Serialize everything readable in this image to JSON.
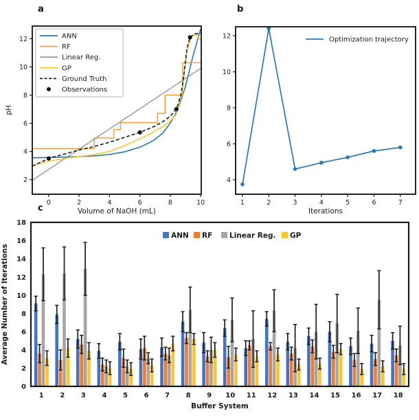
{
  "figure": {
    "panel_labels": {
      "a": "a",
      "b": "b",
      "c": "c"
    }
  },
  "colors": {
    "ann_line": "#2878b5",
    "rf_line": "#f79b3e",
    "linear_line": "#909090",
    "gp_line": "#fbc72d",
    "ground_truth": "#1a1a1a",
    "observations": "#111111",
    "trajectory": "#2878b5",
    "bar_ann": "#4472C4",
    "bar_rf": "#ED7D31",
    "bar_linear": "#A5A5A5",
    "bar_gp": "#FFC32B",
    "error_bar": "#1a1a1a",
    "spine": "#1a1a1a"
  },
  "chart_data": [
    {
      "id": "a",
      "type": "line",
      "title": "",
      "xlabel": "Volume of NaOH (mL)",
      "ylabel": "pH",
      "xlim": [
        -1.08,
        10.04
      ],
      "ylim": [
        0.96,
        12.9
      ],
      "xticks": [
        0,
        2,
        4,
        6,
        8,
        10
      ],
      "yticks": [
        2,
        4,
        6,
        8,
        10,
        12
      ],
      "grid": false,
      "legend_position": "upper-left-box",
      "series": [
        {
          "name": "ANN",
          "style": "solid",
          "color": "#2878b5",
          "width": 1.6,
          "x": [
            -1.08,
            0,
            1,
            2,
            3,
            4,
            5,
            6,
            6.5,
            7,
            7.5,
            8,
            8.5,
            9,
            9.5,
            10
          ],
          "y": [
            3.55,
            3.57,
            3.6,
            3.63,
            3.68,
            3.78,
            3.97,
            4.3,
            4.55,
            4.85,
            5.3,
            6.0,
            7.0,
            8.6,
            10.8,
            12.7
          ]
        },
        {
          "name": "RF",
          "style": "solid",
          "color": "#f79b3e",
          "width": 1.5,
          "x": [
            -1.08,
            3.0,
            3.0,
            4.28,
            4.28,
            4.73,
            4.73,
            7.16,
            7.16,
            7.66,
            7.66,
            8.81,
            8.81,
            10
          ],
          "y": [
            4.2,
            4.2,
            4.95,
            4.95,
            5.55,
            5.55,
            6.05,
            6.05,
            6.7,
            6.7,
            8.0,
            8.0,
            10.3,
            10.3
          ]
        },
        {
          "name": "Linear Reg.",
          "style": "solid",
          "color": "#909090",
          "width": 1.3,
          "x": [
            -1.08,
            10
          ],
          "y": [
            1.95,
            9.9
          ]
        },
        {
          "name": "GP",
          "style": "solid",
          "color": "#fbc72d",
          "width": 1.6,
          "x": [
            -1.08,
            0,
            1,
            2,
            3,
            4,
            5,
            6,
            6.5,
            7,
            7.5,
            8,
            8.4,
            8.8,
            9.1,
            9.4,
            9.7,
            10
          ],
          "y": [
            3.0,
            3.3,
            3.5,
            3.63,
            3.77,
            4.0,
            4.4,
            4.9,
            5.15,
            5.45,
            5.75,
            6.15,
            6.65,
            8.3,
            11.2,
            12.2,
            12.3,
            11.9
          ]
        },
        {
          "name": "Ground Truth",
          "style": "dashed",
          "color": "#1a1a1a",
          "width": 1.6,
          "x": [
            -1.08,
            0,
            1,
            2,
            3,
            4,
            5,
            6,
            7,
            7.5,
            8,
            8.4,
            8.7,
            8.9,
            9.1,
            9.3,
            9.6,
            10
          ],
          "y": [
            2.95,
            3.5,
            3.8,
            4.1,
            4.35,
            4.65,
            5.0,
            5.35,
            5.8,
            6.1,
            6.5,
            7.0,
            8.0,
            9.5,
            11.3,
            12.1,
            12.35,
            12.4
          ]
        },
        {
          "name": "Observations",
          "style": "scatter",
          "color": "#111111",
          "width": 0,
          "x": [
            0,
            6,
            8.4,
            9.3
          ],
          "y": [
            3.5,
            5.35,
            7.0,
            12.1
          ]
        }
      ]
    },
    {
      "id": "b",
      "type": "line",
      "title": "",
      "xlabel": "Iterations",
      "ylabel": "",
      "xlim": [
        0.74,
        7.58
      ],
      "ylim": [
        3.2,
        12.5
      ],
      "xticks": [
        1,
        2,
        3,
        4,
        5,
        6,
        7
      ],
      "yticks": [
        4,
        6,
        8,
        10,
        12
      ],
      "grid": false,
      "legend_position": "upper-right-inline",
      "series": [
        {
          "name": "Optimization trajectory",
          "style": "solid-marker",
          "color": "#2878b5",
          "width": 1.7,
          "x": [
            1,
            2,
            3,
            4,
            5,
            6,
            7
          ],
          "y": [
            3.75,
            12.4,
            4.6,
            4.95,
            5.25,
            5.6,
            5.8
          ]
        }
      ]
    },
    {
      "id": "c",
      "type": "bar",
      "title": "",
      "xlabel": "Buffer System",
      "ylabel": "Average Number of Iterations",
      "categories": [
        "1",
        "2",
        "3",
        "4",
        "5",
        "6",
        "7",
        "8",
        "9",
        "10",
        "11",
        "12",
        "13",
        "14",
        "15",
        "16",
        "17",
        "18"
      ],
      "ylim": [
        0,
        18
      ],
      "yticks": [
        0,
        2,
        4,
        6,
        8,
        10,
        12,
        14,
        16,
        18
      ],
      "grid": false,
      "legend_position": "top-row",
      "series": [
        {
          "name": "ANN",
          "color": "#4472C4",
          "values": [
            9.1,
            7.9,
            5.2,
            3.9,
            4.9,
            4.1,
            4.3,
            7.1,
            4.8,
            6.4,
            4.2,
            7.4,
            4.9,
            5.5,
            6.0,
            4.4,
            4.7,
            5.0
          ],
          "errors": [
            0.8,
            1.0,
            1.0,
            0.8,
            0.9,
            1.1,
            1.0,
            1.1,
            1.1,
            0.9,
            0.8,
            0.8,
            0.9,
            0.9,
            1.1,
            0.9,
            0.9,
            0.9
          ]
        },
        {
          "name": "RF",
          "color": "#ED7D31",
          "values": [
            3.6,
            2.9,
            4.6,
            2.4,
            3.1,
            4.2,
            3.6,
            5.3,
            3.3,
            3.2,
            4.5,
            4.4,
            3.6,
            4.4,
            3.8,
            2.9,
            3.0,
            3.4
          ],
          "errors": [
            1.0,
            1.1,
            1.0,
            0.7,
            1.0,
            1.3,
            0.7,
            0.6,
            0.6,
            1.2,
            0.5,
            0.4,
            0.7,
            0.7,
            0.7,
            0.7,
            0.7,
            0.7
          ]
        },
        {
          "name": "Linear Reg.",
          "color": "#A5A5A5",
          "values": [
            12.3,
            12.4,
            12.9,
            2.2,
            2.2,
            3.1,
            3.4,
            8.4,
            4.0,
            7.3,
            5.2,
            8.3,
            4.2,
            6.0,
            6.9,
            6.1,
            9.5,
            4.5
          ],
          "errors": [
            2.9,
            2.9,
            2.9,
            0.7,
            0.7,
            0.6,
            0.8,
            2.5,
            1.4,
            2.4,
            3.1,
            2.3,
            2.6,
            3.0,
            3.2,
            2.5,
            3.2,
            2.1
          ]
        },
        {
          "name": "GP",
          "color": "#FFC32B",
          "values": [
            3.1,
            4.2,
            3.9,
            2.0,
            1.9,
            2.3,
            4.7,
            5.2,
            4.0,
            3.5,
            3.3,
            3.5,
            2.4,
            2.5,
            4.1,
            1.9,
            2.2,
            1.9
          ],
          "errors": [
            0.8,
            1.0,
            0.9,
            0.7,
            0.7,
            0.7,
            0.8,
            0.6,
            0.8,
            0.7,
            0.6,
            0.7,
            0.6,
            0.6,
            0.6,
            0.6,
            0.6,
            0.6
          ]
        }
      ]
    }
  ]
}
